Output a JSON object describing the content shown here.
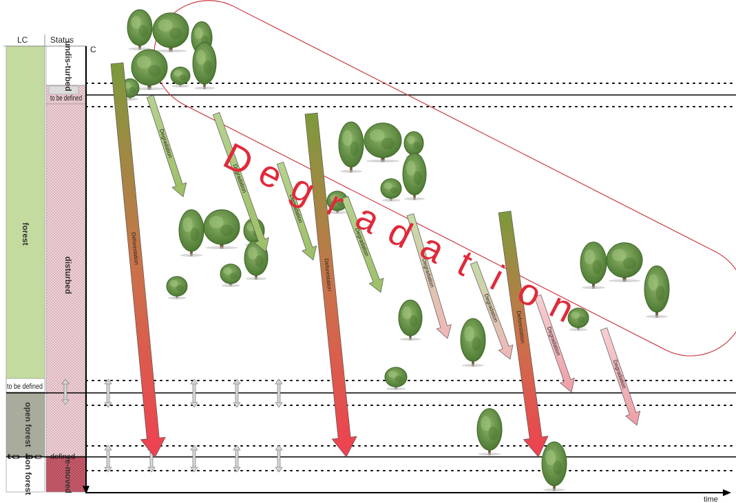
{
  "headers": {
    "lc": "LC",
    "status": "Status"
  },
  "axis": {
    "y_label": "C",
    "x_label": "time"
  },
  "lc_classes": {
    "forest": "forest",
    "open_forest": "open forest",
    "non_forest": "non forest"
  },
  "status_labels": {
    "undisturbed": "undis-turbed",
    "tbd_top": "to be defined",
    "disturbed": "disturbed",
    "tbd_mid_lc": "to be defined",
    "tbd_bottom_lc": "to be",
    "tbd_bottom_status": "defined",
    "removed": "re-moved"
  },
  "arrow_labels": {
    "deforestation": "Deforestation",
    "degradation": "Degradation"
  },
  "big_label": "Degradation",
  "colors": {
    "forest_green": "#c4dba0",
    "open_forest_gray": "#a9ab9c",
    "status_pink": "#ecc4cb",
    "removed_red": "#c85a6a",
    "degradation_red": "#e02a3a",
    "arrow_green": "#8fa84f",
    "arrow_red": "#e8484c"
  }
}
